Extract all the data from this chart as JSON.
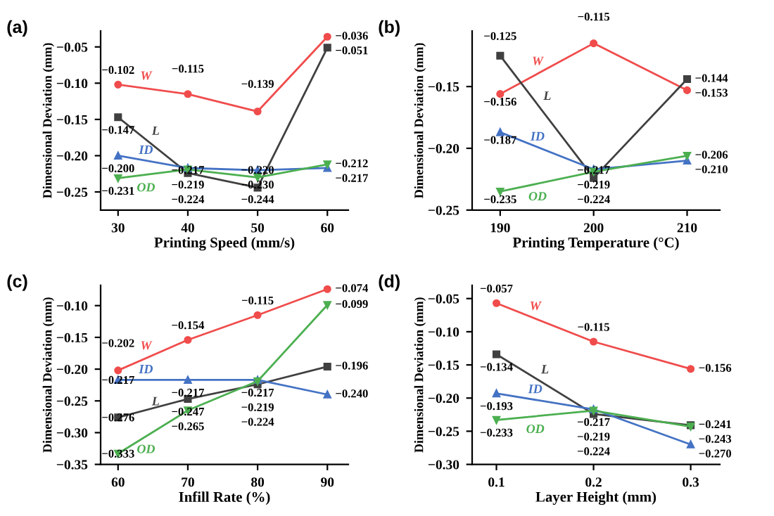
{
  "chart_data": [
    {
      "type": "line",
      "title": "(a)",
      "xlabel": "Printing Speed (mm/s)",
      "ylabel": "Dimensional Deviation (mm)",
      "x": [
        30,
        40,
        50,
        60
      ],
      "xlim": [
        27.5,
        63
      ],
      "xticks": [
        30,
        40,
        50,
        60
      ],
      "ylim": [
        -0.275,
        -0.028
      ],
      "yticks": [
        {
          "value": -0.25,
          "label": "−0.25"
        },
        {
          "value": -0.2,
          "label": "−0.20"
        },
        {
          "value": -0.15,
          "label": "−0.15"
        },
        {
          "value": -0.1,
          "label": "−0.10"
        },
        {
          "value": -0.05,
          "label": "−0.05"
        }
      ],
      "data_labels": true,
      "grid": false,
      "legend": false,
      "series": [
        {
          "name": "W",
          "color": "#f04c4c",
          "marker": "circle",
          "values": [
            -0.102,
            -0.115,
            -0.139,
            -0.036
          ],
          "value_labels": [
            "−0.102",
            "−0.115",
            "−0.139",
            "−0.036"
          ]
        },
        {
          "name": "L",
          "color": "#404040",
          "marker": "square",
          "values": [
            -0.147,
            -0.224,
            -0.244,
            -0.051
          ],
          "value_labels": [
            "−0.147",
            "−0.224",
            "−0.244",
            "−0.051"
          ]
        },
        {
          "name": "ID",
          "color": "#4472c4",
          "marker": "triangle",
          "values": [
            -0.2,
            -0.217,
            -0.22,
            -0.217
          ],
          "value_labels": [
            "−0.200",
            "−0.217",
            "−0.220",
            "−0.217"
          ]
        },
        {
          "name": "OD",
          "color": "#4caf50",
          "marker": "triangle_down",
          "values": [
            -0.231,
            -0.219,
            -0.23,
            -0.212
          ],
          "value_labels": [
            "−0.231",
            "−0.219",
            "−0.230",
            "−0.212"
          ]
        }
      ]
    },
    {
      "type": "line",
      "title": "(b)",
      "xlabel": "Printing Temperature (°C)",
      "ylabel": "Dimensional Deviation (mm)",
      "x": [
        190,
        200,
        210
      ],
      "xlim": [
        187,
        213.5
      ],
      "xticks": [
        190,
        200,
        210
      ],
      "ylim": [
        -0.25,
        -0.105
      ],
      "yticks": [
        {
          "value": -0.25,
          "label": "−0.25"
        },
        {
          "value": -0.2,
          "label": "−0.20"
        },
        {
          "value": -0.15,
          "label": "−0.15"
        }
      ],
      "data_labels": true,
      "grid": false,
      "legend": false,
      "series": [
        {
          "name": "W",
          "color": "#f04c4c",
          "marker": "circle",
          "values": [
            -0.156,
            -0.115,
            -0.153
          ],
          "value_labels": [
            "−0.156",
            "−0.115",
            "−0.153"
          ]
        },
        {
          "name": "L",
          "color": "#404040",
          "marker": "square",
          "values": [
            -0.125,
            -0.224,
            -0.144
          ],
          "value_labels": [
            "−0.125",
            "−0.224",
            "−0.144"
          ]
        },
        {
          "name": "ID",
          "color": "#4472c4",
          "marker": "triangle",
          "values": [
            -0.187,
            -0.217,
            -0.21
          ],
          "value_labels": [
            "−0.187",
            "−0.217",
            "−0.210"
          ]
        },
        {
          "name": "OD",
          "color": "#4caf50",
          "marker": "triangle_down",
          "values": [
            -0.235,
            -0.219,
            -0.206
          ],
          "value_labels": [
            "−0.235",
            "−0.219",
            "−0.206"
          ]
        }
      ]
    },
    {
      "type": "line",
      "title": "(c)",
      "xlabel": "Infill Rate (%)",
      "ylabel": "Dimensional Deviation (mm)",
      "x": [
        60,
        70,
        80,
        90
      ],
      "xlim": [
        57.5,
        93
      ],
      "xticks": [
        60,
        70,
        80,
        90
      ],
      "ylim": [
        -0.35,
        -0.068
      ],
      "yticks": [
        {
          "value": -0.35,
          "label": "−0.35"
        },
        {
          "value": -0.3,
          "label": "−0.30"
        },
        {
          "value": -0.25,
          "label": "−0.25"
        },
        {
          "value": -0.2,
          "label": "−0.20"
        },
        {
          "value": -0.15,
          "label": "−0.15"
        },
        {
          "value": -0.1,
          "label": "−0.10"
        }
      ],
      "data_labels": true,
      "grid": false,
      "legend": false,
      "series": [
        {
          "name": "W",
          "color": "#f04c4c",
          "marker": "circle",
          "values": [
            -0.202,
            -0.154,
            -0.115,
            -0.074
          ],
          "value_labels": [
            "−0.202",
            "−0.154",
            "−0.115",
            "−0.074"
          ]
        },
        {
          "name": "L",
          "color": "#404040",
          "marker": "square",
          "values": [
            -0.276,
            -0.247,
            -0.224,
            -0.196
          ],
          "value_labels": [
            "−0.276",
            "−0.247",
            "−0.224",
            "−0.196"
          ]
        },
        {
          "name": "ID",
          "color": "#4472c4",
          "marker": "triangle",
          "values": [
            -0.217,
            -0.217,
            -0.217,
            -0.24
          ],
          "value_labels": [
            "−0.217",
            "−0.217",
            "−0.217",
            "−0.240"
          ]
        },
        {
          "name": "OD",
          "color": "#4caf50",
          "marker": "triangle_down",
          "values": [
            -0.333,
            -0.265,
            -0.219,
            -0.099
          ],
          "value_labels": [
            "−0.333",
            "−0.265",
            "−0.219",
            "−0.099"
          ]
        }
      ]
    },
    {
      "type": "line",
      "title": "(d)",
      "xlabel": "Layer Height (mm)",
      "ylabel": "Dimensional Deviation (mm)",
      "x": [
        0.1,
        0.2,
        0.3
      ],
      "xlim": [
        0.075,
        0.33
      ],
      "xticks": [
        0.1,
        0.2,
        0.3
      ],
      "ylim": [
        -0.3,
        -0.03
      ],
      "yticks": [
        {
          "value": -0.3,
          "label": "−0.30"
        },
        {
          "value": -0.25,
          "label": "−0.25"
        },
        {
          "value": -0.2,
          "label": "−0.20"
        },
        {
          "value": -0.15,
          "label": "−0.15"
        },
        {
          "value": -0.1,
          "label": "−0.10"
        },
        {
          "value": -0.05,
          "label": "−0.05"
        }
      ],
      "data_labels": true,
      "grid": false,
      "legend": false,
      "series": [
        {
          "name": "W",
          "color": "#f04c4c",
          "marker": "circle",
          "values": [
            -0.057,
            -0.115,
            -0.156
          ],
          "value_labels": [
            "−0.057",
            "−0.115",
            "−0.156"
          ]
        },
        {
          "name": "L",
          "color": "#404040",
          "marker": "square",
          "values": [
            -0.134,
            -0.224,
            -0.241
          ],
          "value_labels": [
            "−0.134",
            "−0.224",
            "−0.241"
          ]
        },
        {
          "name": "ID",
          "color": "#4472c4",
          "marker": "triangle",
          "values": [
            -0.193,
            -0.217,
            -0.27
          ],
          "value_labels": [
            "−0.193",
            "−0.217",
            "−0.270"
          ]
        },
        {
          "name": "OD",
          "color": "#4caf50",
          "marker": "triangle_down",
          "values": [
            -0.233,
            -0.219,
            -0.243
          ],
          "value_labels": [
            "−0.233",
            "−0.219",
            "−0.243"
          ]
        }
      ]
    }
  ]
}
